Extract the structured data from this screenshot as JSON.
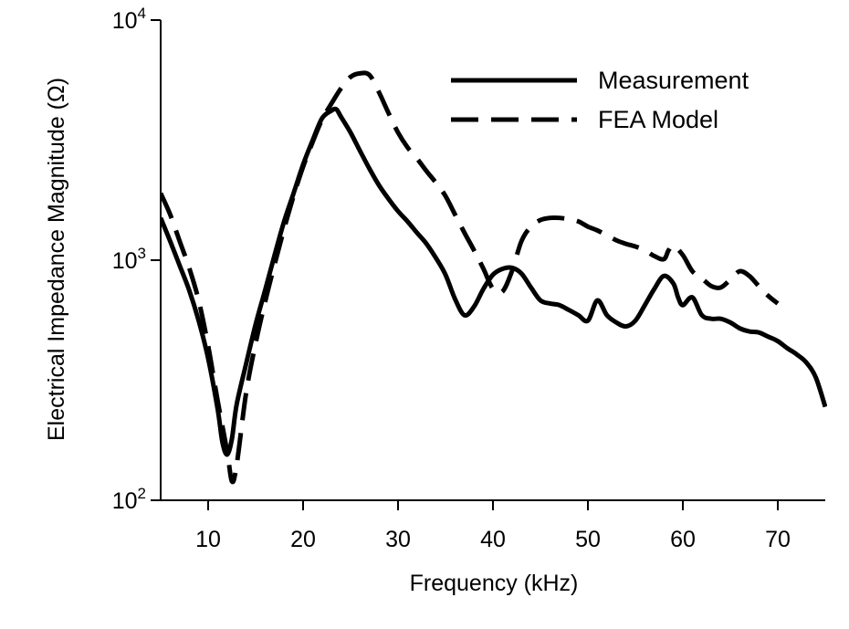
{
  "chart_data": {
    "type": "line",
    "title": "",
    "xlabel": "Frequency (kHz)",
    "ylabel": "Electrical Impedance Magnitude (Ω)",
    "xlim": [
      5,
      75
    ],
    "ylim": [
      100,
      10000
    ],
    "yscale": "log",
    "grid": false,
    "legend_position": "top-right",
    "x_ticks": [
      10,
      20,
      30,
      40,
      50,
      60,
      70
    ],
    "x_tick_labels": [
      "10",
      "20",
      "30",
      "40",
      "50",
      "60",
      "70"
    ],
    "y_ticks": [
      {
        "value": 100,
        "base": "10",
        "exp": "2"
      },
      {
        "value": 1000,
        "base": "10",
        "exp": "3"
      },
      {
        "value": 10000,
        "base": "10",
        "exp": "4"
      }
    ],
    "series": [
      {
        "name": "Measurement",
        "style": "solid",
        "color": "#000000",
        "x": [
          5,
          6,
          7,
          8,
          9,
          10,
          11,
          11.5,
          12,
          12.5,
          13,
          14,
          15,
          16,
          17,
          18,
          19,
          20,
          21,
          22,
          23,
          23.5,
          24,
          25,
          26,
          27,
          28,
          29,
          30,
          31,
          32,
          33,
          34,
          35,
          36,
          37,
          38,
          39,
          40,
          41,
          42,
          43,
          44,
          45,
          46,
          47,
          48,
          49,
          50,
          51,
          52,
          53,
          54,
          55,
          56,
          57,
          58,
          59,
          59.5,
          60,
          61,
          62,
          63,
          64,
          65,
          66,
          67,
          68,
          69,
          70,
          71,
          72,
          73,
          74,
          75
        ],
        "values": [
          1500,
          1200,
          950,
          750,
          560,
          390,
          240,
          175,
          155,
          180,
          250,
          370,
          540,
          750,
          1050,
          1450,
          1900,
          2500,
          3150,
          3900,
          4200,
          4250,
          3950,
          3400,
          2850,
          2400,
          2050,
          1800,
          1600,
          1450,
          1300,
          1170,
          1020,
          870,
          690,
          590,
          640,
          760,
          870,
          920,
          930,
          880,
          770,
          680,
          660,
          650,
          620,
          590,
          560,
          680,
          590,
          550,
          530,
          560,
          650,
          760,
          860,
          800,
          700,
          650,
          700,
          590,
          570,
          570,
          550,
          520,
          505,
          500,
          480,
          460,
          430,
          405,
          375,
          325,
          245
        ]
      },
      {
        "name": "FEA Model",
        "style": "dashed",
        "color": "#000000",
        "x": [
          5,
          6,
          7,
          8,
          9,
          10,
          11,
          12,
          12.5,
          13,
          14,
          15,
          16,
          17,
          18,
          19,
          20,
          21,
          22,
          23,
          24,
          25,
          26,
          27,
          28,
          29,
          30,
          31,
          32,
          33,
          34,
          35,
          36,
          37,
          38,
          39,
          40,
          41,
          42,
          43,
          44,
          45,
          46,
          47,
          48,
          49,
          50,
          51,
          52,
          53,
          54,
          55,
          56,
          57,
          58,
          58.5,
          59,
          60,
          61,
          62,
          63,
          64,
          65,
          66,
          67,
          68,
          69,
          70
        ],
        "values": [
          1900,
          1550,
          1200,
          930,
          680,
          440,
          260,
          160,
          120,
          140,
          280,
          450,
          670,
          960,
          1350,
          1850,
          2450,
          3100,
          3850,
          4500,
          5200,
          5800,
          6000,
          5900,
          5000,
          4100,
          3400,
          2950,
          2650,
          2350,
          2100,
          1850,
          1550,
          1300,
          1100,
          920,
          760,
          740,
          900,
          1200,
          1380,
          1470,
          1500,
          1500,
          1480,
          1450,
          1380,
          1330,
          1270,
          1210,
          1170,
          1140,
          1100,
          1040,
          1010,
          1100,
          1150,
          1050,
          900,
          840,
          780,
          770,
          830,
          900,
          860,
          780,
          710,
          660
        ]
      }
    ]
  }
}
